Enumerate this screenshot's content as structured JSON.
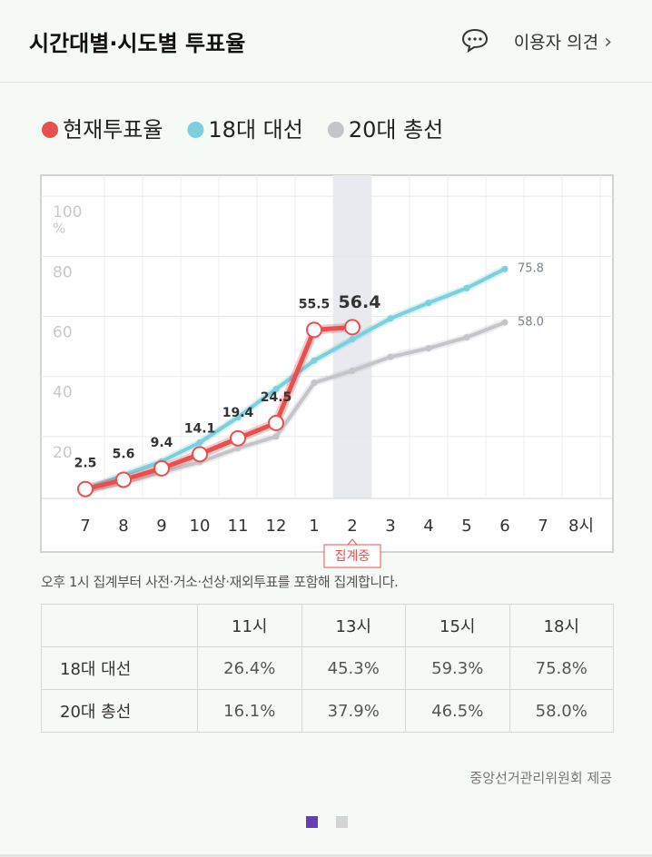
{
  "header": {
    "title": "시간대별·시도별 투표율",
    "link": "이용자 의견"
  },
  "chart_data": {
    "type": "line",
    "categories": [
      "7",
      "8",
      "9",
      "10",
      "11",
      "12",
      "1",
      "2",
      "3",
      "4",
      "5",
      "6",
      "7",
      "8시"
    ],
    "series": [
      {
        "name": "현재투표율",
        "color": "#e8504f",
        "values": [
          2.5,
          5.6,
          9.4,
          14.1,
          19.4,
          24.5,
          55.5,
          56.4,
          null,
          null,
          null,
          null,
          null,
          null
        ]
      },
      {
        "name": "18대 대선",
        "color": "#7ccfdd",
        "values": [
          2.5,
          7.2,
          11.7,
          18.0,
          26.4,
          35.8,
          45.3,
          52.4,
          59.3,
          64.5,
          69.4,
          75.8,
          null,
          null
        ],
        "value_labels": [
          null,
          null,
          null,
          null,
          null,
          null,
          null,
          null,
          null,
          null,
          null,
          "75.8",
          null,
          null
        ]
      },
      {
        "name": "20대 총선",
        "color": "#c3c5c9",
        "values": [
          1.8,
          4.5,
          8.1,
          11.5,
          16.1,
          20.0,
          37.9,
          41.9,
          46.5,
          49.4,
          53.0,
          58.0,
          null,
          null
        ],
        "value_labels": [
          null,
          null,
          null,
          null,
          null,
          null,
          null,
          null,
          null,
          null,
          null,
          "58.0",
          null,
          null
        ]
      }
    ],
    "ylim": [
      0,
      107
    ],
    "yticks": [
      20,
      40,
      60,
      80,
      100
    ],
    "y_unit": "%",
    "grid": true,
    "highlight_category": 7,
    "highlight_label": "집계중"
  },
  "note": "오후 1시 집계부터 사전·거소·선상·재외투표를 포함해 집계합니다.",
  "table": {
    "columns": [
      "11시",
      "13시",
      "15시",
      "18시"
    ],
    "rows": [
      {
        "name": "18대 대선",
        "cells": [
          "26.4%",
          "45.3%",
          "59.3%",
          "75.8%"
        ]
      },
      {
        "name": "20대 총선",
        "cells": [
          "16.1%",
          "37.9%",
          "46.5%",
          "58.0%"
        ]
      }
    ]
  },
  "footer": "중앙선거관리위원회 제공"
}
